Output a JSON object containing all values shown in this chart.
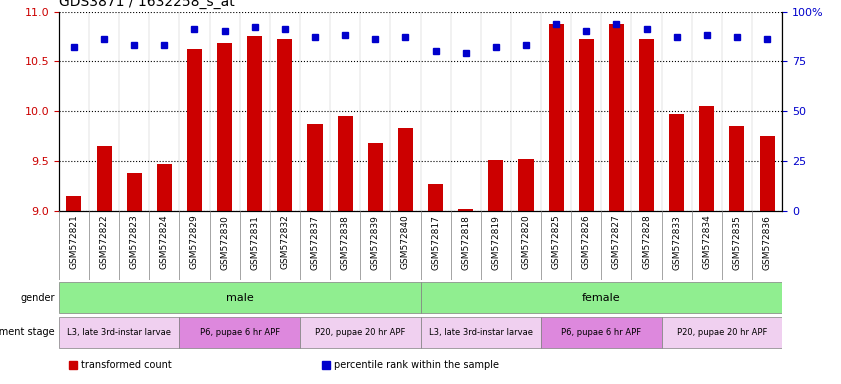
{
  "title": "GDS3871 / 1632258_s_at",
  "samples": [
    "GSM572821",
    "GSM572822",
    "GSM572823",
    "GSM572824",
    "GSM572829",
    "GSM572830",
    "GSM572831",
    "GSM572832",
    "GSM572837",
    "GSM572838",
    "GSM572839",
    "GSM572840",
    "GSM572817",
    "GSM572818",
    "GSM572819",
    "GSM572820",
    "GSM572825",
    "GSM572826",
    "GSM572827",
    "GSM572828",
    "GSM572833",
    "GSM572834",
    "GSM572835",
    "GSM572836"
  ],
  "transformed_count": [
    9.15,
    9.65,
    9.38,
    9.47,
    10.62,
    10.68,
    10.75,
    10.72,
    9.87,
    9.95,
    9.68,
    9.83,
    9.27,
    9.02,
    9.51,
    9.52,
    10.88,
    10.72,
    10.88,
    10.72,
    9.97,
    10.05,
    9.85,
    9.75
  ],
  "percentile_rank": [
    82,
    86,
    83,
    83,
    91,
    90,
    92,
    91,
    87,
    88,
    86,
    87,
    80,
    79,
    82,
    83,
    94,
    90,
    94,
    91,
    87,
    88,
    87,
    86
  ],
  "ylim_left": [
    9.0,
    11.0
  ],
  "ylim_right": [
    0,
    100
  ],
  "yticks_left": [
    9.0,
    9.5,
    10.0,
    10.5,
    11.0
  ],
  "yticks_right": [
    0,
    25,
    50,
    75,
    100
  ],
  "bar_color": "#cc0000",
  "dot_color": "#0000cc",
  "gender_groups": [
    {
      "label": "male",
      "start": 0,
      "end": 12,
      "color": "#90ee90"
    },
    {
      "label": "female",
      "start": 12,
      "end": 24,
      "color": "#90ee90"
    }
  ],
  "dev_stage_groups": [
    {
      "label": "L3, late 3rd-instar larvae",
      "start": 0,
      "end": 4,
      "color": "#f0d0f0"
    },
    {
      "label": "P6, pupae 6 hr APF",
      "start": 4,
      "end": 8,
      "color": "#dd88dd"
    },
    {
      "label": "P20, pupae 20 hr APF",
      "start": 8,
      "end": 12,
      "color": "#f0d0f0"
    },
    {
      "label": "L3, late 3rd-instar larvae",
      "start": 12,
      "end": 16,
      "color": "#f0d0f0"
    },
    {
      "label": "P6, pupae 6 hr APF",
      "start": 16,
      "end": 20,
      "color": "#dd88dd"
    },
    {
      "label": "P20, pupae 20 hr APF",
      "start": 20,
      "end": 24,
      "color": "#f0d0f0"
    }
  ],
  "legend_items": [
    {
      "label": "transformed count",
      "color": "#cc0000",
      "marker": "s"
    },
    {
      "label": "percentile rank within the sample",
      "color": "#0000cc",
      "marker": "s"
    }
  ],
  "bg_color": "#ffffff",
  "tick_label_color_left": "#cc0000",
  "tick_label_color_right": "#0000cc",
  "grid_linestyle": "dotted"
}
